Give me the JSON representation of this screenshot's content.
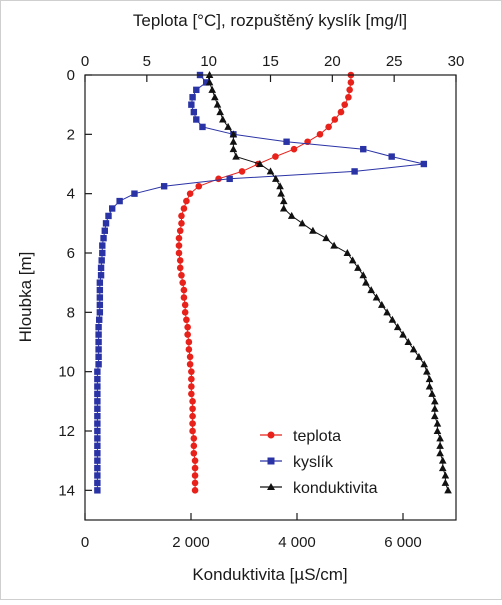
{
  "chart_data": {
    "type": "line",
    "top_axis": {
      "label": "Teplota [°C], rozpuštěný kyslík [mg/l]",
      "range": [
        0,
        30
      ],
      "ticks": [
        "0",
        "5",
        "10",
        "15",
        "20",
        "25",
        "30"
      ]
    },
    "bottom_axis": {
      "label": "Konduktivita [µS/cm]",
      "range": [
        0,
        7000
      ],
      "ticks": [
        "0",
        "2 000",
        "4 000",
        "6 000"
      ]
    },
    "y_axis": {
      "label": "Hloubka [m]",
      "range": [
        0,
        15
      ],
      "inverted": true,
      "ticks": [
        "0",
        "2",
        "4",
        "6",
        "8",
        "10",
        "12",
        "14"
      ]
    },
    "legend_position": "bottom-right",
    "series": [
      {
        "name": "teplota",
        "axis": "top",
        "color": "#e8211b",
        "marker": "circle",
        "y": [
          0.0,
          0.25,
          0.5,
          0.75,
          1.0,
          1.25,
          1.5,
          1.75,
          2.0,
          2.25,
          2.5,
          2.75,
          3.0,
          3.25,
          3.5,
          3.75,
          4.0,
          4.25,
          4.5,
          4.75,
          5.0,
          5.25,
          5.5,
          5.75,
          6.0,
          6.25,
          6.5,
          6.75,
          7.0,
          7.25,
          7.5,
          7.75,
          8.0,
          8.25,
          8.5,
          8.75,
          9.0,
          9.25,
          9.5,
          9.75,
          10.0,
          10.25,
          10.5,
          10.75,
          11.0,
          11.25,
          11.5,
          11.75,
          12.0,
          12.25,
          12.5,
          12.75,
          13.0,
          13.25,
          13.5,
          13.75,
          14.0
        ],
        "x": [
          21.5,
          21.5,
          21.4,
          21.3,
          21.0,
          20.7,
          20.2,
          19.7,
          19.0,
          18.0,
          16.9,
          15.4,
          14.0,
          12.7,
          10.8,
          9.2,
          8.5,
          8.2,
          8.0,
          7.8,
          7.8,
          7.7,
          7.6,
          7.6,
          7.6,
          7.7,
          7.7,
          7.8,
          7.9,
          8.0,
          8.0,
          8.1,
          8.1,
          8.2,
          8.3,
          8.3,
          8.4,
          8.4,
          8.5,
          8.5,
          8.6,
          8.6,
          8.6,
          8.6,
          8.7,
          8.7,
          8.7,
          8.7,
          8.7,
          8.8,
          8.8,
          8.8,
          8.9,
          8.9,
          8.9,
          8.9,
          8.9
        ]
      },
      {
        "name": "kyslík",
        "axis": "top",
        "color": "#2a33a5",
        "marker": "square",
        "y": [
          0.0,
          0.25,
          0.5,
          0.75,
          1.0,
          1.25,
          1.5,
          1.75,
          2.0,
          2.25,
          2.5,
          2.75,
          3.0,
          3.25,
          3.5,
          3.75,
          4.0,
          4.25,
          4.5,
          4.75,
          5.0,
          5.25,
          5.5,
          5.75,
          6.0,
          6.25,
          6.5,
          6.75,
          7.0,
          7.25,
          7.5,
          7.75,
          8.0,
          8.25,
          8.5,
          8.75,
          9.0,
          9.25,
          9.5,
          9.75,
          10.0,
          10.25,
          10.5,
          10.75,
          11.0,
          11.25,
          11.5,
          11.75,
          12.0,
          12.25,
          12.5,
          12.75,
          13.0,
          13.25,
          13.5,
          13.75,
          14.0
        ],
        "x": [
          9.3,
          9.8,
          9.0,
          8.7,
          8.6,
          8.8,
          9.0,
          9.5,
          12.0,
          16.3,
          22.5,
          24.8,
          27.4,
          21.8,
          11.7,
          6.4,
          4.0,
          2.8,
          2.2,
          1.9,
          1.7,
          1.6,
          1.5,
          1.4,
          1.4,
          1.35,
          1.3,
          1.3,
          1.2,
          1.2,
          1.2,
          1.2,
          1.2,
          1.15,
          1.1,
          1.1,
          1.1,
          1.1,
          1.1,
          1.1,
          1.0,
          1.0,
          1.0,
          1.0,
          1.0,
          1.0,
          1.0,
          1.0,
          1.0,
          1.0,
          1.0,
          1.0,
          1.0,
          1.0,
          1.0,
          1.0,
          1.0
        ]
      },
      {
        "name": "konduktivita",
        "axis": "bottom",
        "color": "#111111",
        "marker": "triangle",
        "y": [
          0.0,
          0.25,
          0.5,
          0.75,
          1.0,
          1.25,
          1.5,
          1.75,
          2.0,
          2.25,
          2.5,
          2.75,
          3.0,
          3.25,
          3.5,
          3.75,
          4.0,
          4.25,
          4.5,
          4.75,
          5.0,
          5.25,
          5.5,
          5.75,
          6.0,
          6.25,
          6.5,
          6.75,
          7.0,
          7.25,
          7.5,
          7.75,
          8.0,
          8.25,
          8.5,
          8.75,
          9.0,
          9.25,
          9.5,
          9.75,
          10.0,
          10.25,
          10.5,
          10.75,
          11.0,
          11.25,
          11.5,
          11.75,
          12.0,
          12.25,
          12.5,
          12.75,
          13.0,
          13.25,
          13.5,
          13.75,
          14.0
        ],
        "x": [
          2350,
          2350,
          2400,
          2450,
          2500,
          2550,
          2600,
          2700,
          2800,
          2800,
          2800,
          2850,
          3300,
          3500,
          3600,
          3680,
          3700,
          3750,
          3750,
          3900,
          4100,
          4300,
          4550,
          4700,
          4950,
          5050,
          5150,
          5250,
          5300,
          5400,
          5500,
          5600,
          5700,
          5800,
          5900,
          6000,
          6100,
          6200,
          6300,
          6400,
          6450,
          6500,
          6500,
          6550,
          6600,
          6600,
          6600,
          6650,
          6650,
          6700,
          6700,
          6700,
          6750,
          6750,
          6800,
          6800,
          6850
        ]
      }
    ]
  }
}
